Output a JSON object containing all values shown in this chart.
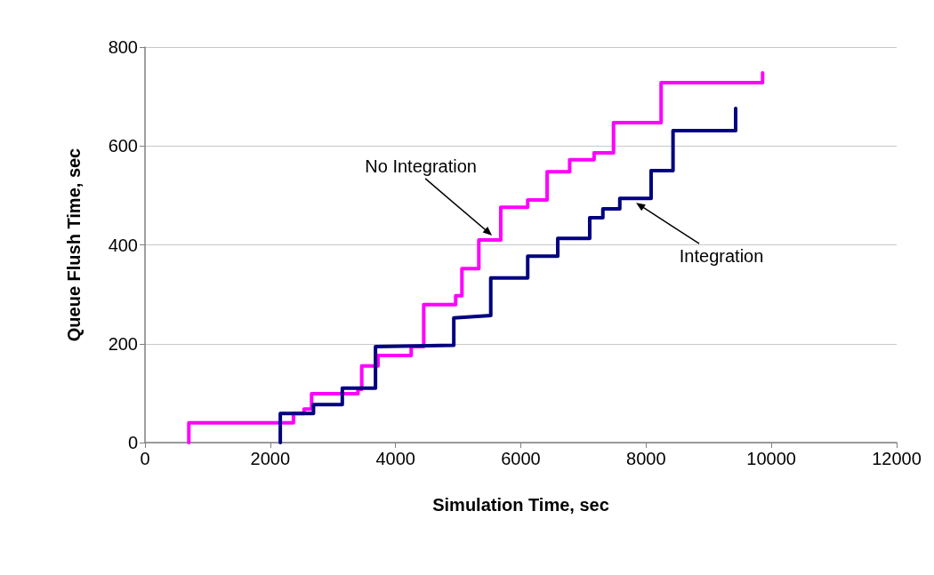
{
  "chart_data": {
    "type": "line",
    "xlabel": "Simulation Time, sec",
    "ylabel": "Queue Flush Time, sec",
    "xlim": [
      0,
      12000
    ],
    "xticks": [
      0,
      2000,
      4000,
      6000,
      8000,
      10000,
      12000
    ],
    "ylim": [
      0,
      800
    ],
    "yticks": [
      0,
      200,
      400,
      600,
      800
    ],
    "grid": "y",
    "marker": "none",
    "line_style": "solid",
    "series": [
      {
        "color": "#ff00ff",
        "x": [
          700,
          700,
          2370,
          2370,
          2540,
          2540,
          2660,
          2660,
          3400,
          3400,
          3460,
          3460,
          3720,
          3720,
          4250,
          4250,
          4450,
          4450,
          4960,
          4960,
          5060,
          5060,
          5330,
          5330,
          5680,
          5680,
          6110,
          6110,
          6420,
          6420,
          6780,
          6780,
          7170,
          7170,
          7480,
          7480,
          8240,
          8240,
          9860,
          9860
        ],
        "values": [
          0,
          40,
          40,
          59,
          59,
          68,
          68,
          99,
          99,
          108,
          108,
          155,
          155,
          176,
          176,
          194,
          194,
          279,
          279,
          297,
          297,
          352,
          352,
          410,
          410,
          476,
          476,
          491,
          491,
          548,
          548,
          572,
          572,
          586,
          586,
          647,
          647,
          728,
          728,
          748
        ]
      },
      {
        "color": "#000080",
        "x": [
          2160,
          2160,
          2690,
          2690,
          3150,
          3150,
          3680,
          3680,
          4930,
          4930,
          5520,
          5520,
          6110,
          6110,
          6590,
          6590,
          7100,
          7100,
          7310,
          7310,
          7580,
          7580,
          8080,
          8080,
          8430,
          8430,
          9430,
          9430
        ],
        "values": [
          0,
          59,
          59,
          77,
          77,
          110,
          110,
          194,
          197,
          252,
          257,
          333,
          333,
          377,
          377,
          413,
          413,
          455,
          455,
          473,
          473,
          494,
          494,
          550,
          550,
          631,
          631,
          676
        ]
      }
    ],
    "annotations": [
      {
        "text": "No Integration",
        "x": 5540,
        "y": 419
      },
      {
        "text": "Integration",
        "x": 7840,
        "y": 485
      }
    ]
  }
}
